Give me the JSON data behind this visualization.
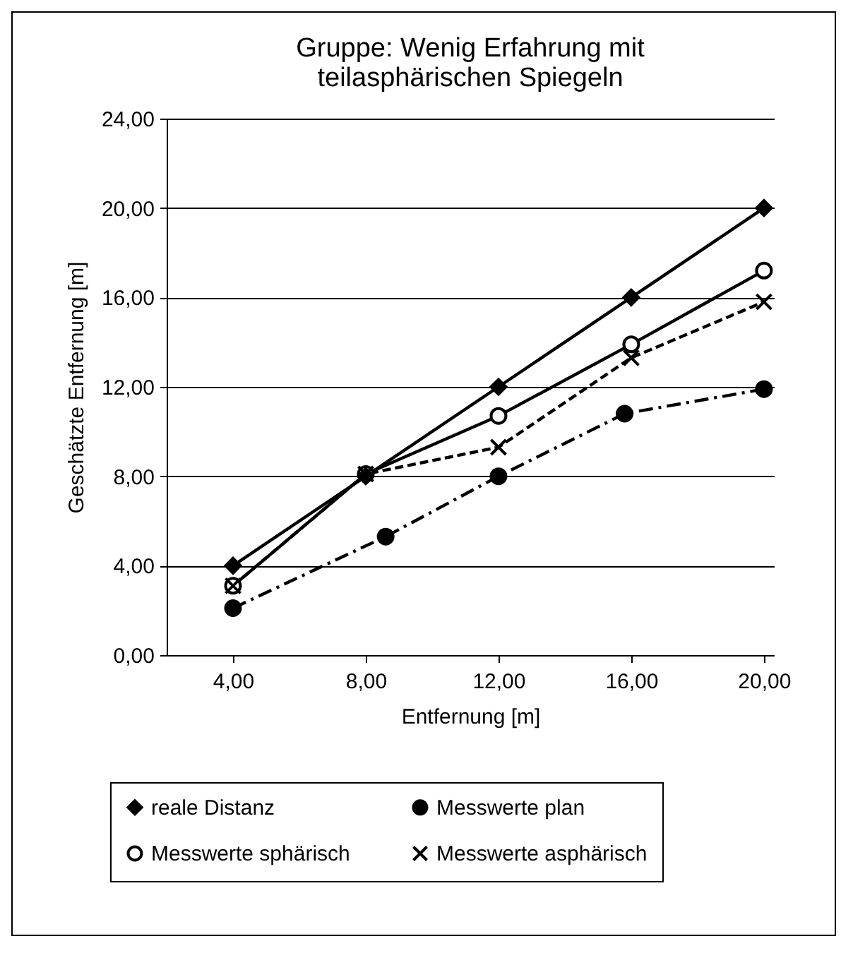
{
  "chart_data": {
    "type": "line",
    "title": "Gruppe: Wenig Erfahrung mit teilasphärischen Spiegeln",
    "xlabel": "Entfernung [m]",
    "ylabel": "Geschätzte Entfernung  [m]",
    "xlim": [
      2,
      20.3
    ],
    "xticks": [
      {
        "value": 4,
        "label": "4,00"
      },
      {
        "value": 8,
        "label": "8,00"
      },
      {
        "value": 12,
        "label": "12,00"
      },
      {
        "value": 16,
        "label": "16,00"
      },
      {
        "value": 20,
        "label": "20,00"
      }
    ],
    "ylim": [
      0,
      24
    ],
    "yticks": [
      {
        "value": 0,
        "label": "0,00"
      },
      {
        "value": 4,
        "label": "4,00"
      },
      {
        "value": 8,
        "label": "8,00"
      },
      {
        "value": 12,
        "label": "12,00"
      },
      {
        "value": 16,
        "label": "16,00"
      },
      {
        "value": 20,
        "label": "20,00"
      },
      {
        "value": 24,
        "label": "24,00"
      }
    ],
    "grid": "y",
    "legend": "bottom",
    "series": [
      {
        "name": "reale Distanz",
        "color": "#000000",
        "marker": "diamond",
        "line_style": "solid",
        "x": [
          4,
          8,
          12,
          16,
          20
        ],
        "values": [
          4,
          8,
          12,
          16,
          20
        ]
      },
      {
        "name": "Messwerte sphärisch",
        "color": "#000000",
        "marker": "circle",
        "line_style": "solid",
        "x": [
          4,
          8,
          12,
          16,
          20
        ],
        "values": [
          3.1,
          8.1,
          10.7,
          13.9,
          17.2
        ]
      },
      {
        "name": "Messwerte plan",
        "color": "#000000",
        "marker": "circle",
        "line_style": "dashdot",
        "x": [
          4,
          8.6,
          12,
          15.8,
          20
        ],
        "values": [
          2.1,
          5.3,
          8,
          10.8,
          11.9
        ]
      },
      {
        "name": "Messwerte asphärisch",
        "color": "#000000",
        "marker": "cross",
        "line_style": "dashed",
        "x": [
          4,
          8,
          12,
          16,
          20
        ],
        "values": [
          3.1,
          8.1,
          9.3,
          13.3,
          15.8
        ]
      }
    ]
  }
}
